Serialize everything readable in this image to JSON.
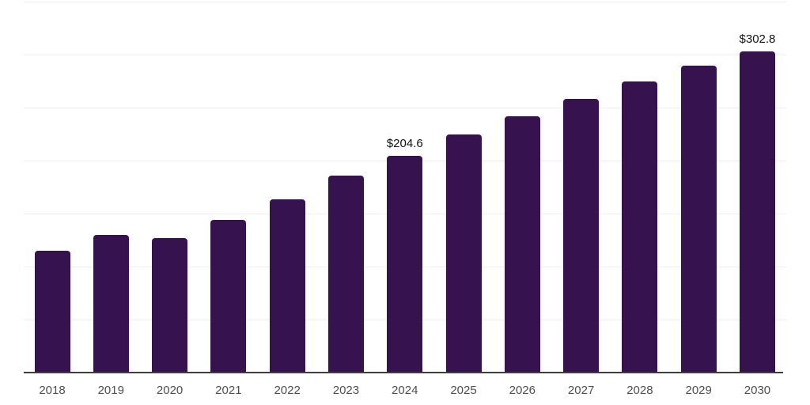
{
  "chart_data": {
    "type": "bar",
    "title": "",
    "xlabel": "",
    "ylabel": "",
    "categories": [
      "2018",
      "2019",
      "2020",
      "2021",
      "2022",
      "2023",
      "2024",
      "2025",
      "2026",
      "2027",
      "2028",
      "2029",
      "2030"
    ],
    "values": [
      115.1,
      129.5,
      127.1,
      143.7,
      163.5,
      185.9,
      204.6,
      224.3,
      241.8,
      258.0,
      274.6,
      289.5,
      302.8
    ],
    "data_labels": [
      {
        "category": "2024",
        "text": "$204.6"
      },
      {
        "category": "2030",
        "text": "$302.8"
      }
    ],
    "ylim": [
      0,
      350
    ],
    "gridline_step": 50,
    "grid": true,
    "y_tick_labels_visible": false,
    "legend": "none",
    "colors": {
      "bar": "#36124e",
      "gridline": "#eeeeee",
      "axis": "#3d3d3d",
      "tick_label": "#4f4f4f",
      "value_label": "#111111",
      "background": "#ffffff"
    }
  }
}
